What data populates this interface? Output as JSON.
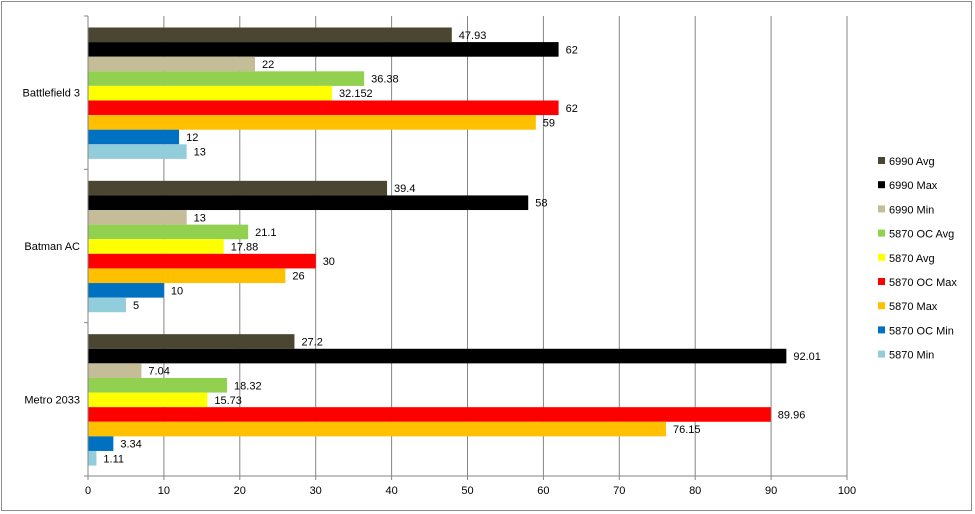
{
  "chart_data": {
    "type": "bar",
    "orientation": "horizontal",
    "categories": [
      "Battlefield 3",
      "Batman AC",
      "Metro 2033"
    ],
    "series": [
      {
        "name": "6990 Avg",
        "color": "#4a4631",
        "values": [
          47.93,
          39.4,
          27.2
        ]
      },
      {
        "name": "6990 Max",
        "color": "#000000",
        "values": [
          62,
          58,
          92.01
        ]
      },
      {
        "name": "6990 Min",
        "color": "#c4bd97",
        "values": [
          22,
          13,
          7.04
        ]
      },
      {
        "name": "5870 OC Avg",
        "color": "#92d050",
        "values": [
          36.38,
          21.1,
          18.32
        ]
      },
      {
        "name": "5870 Avg",
        "color": "#ffff00",
        "values": [
          32.152,
          17.88,
          15.73
        ]
      },
      {
        "name": "5870 OC Max",
        "color": "#ff0000",
        "values": [
          62,
          30,
          89.96
        ]
      },
      {
        "name": "5870 Max",
        "color": "#ffc000",
        "values": [
          59,
          26,
          76.15
        ]
      },
      {
        "name": "5870 OC Min",
        "color": "#0070c0",
        "values": [
          12,
          10,
          3.34
        ]
      },
      {
        "name": "5870 Min",
        "color": "#92cddc",
        "values": [
          13,
          5,
          1.11
        ]
      }
    ],
    "value_labels": [
      [
        "47.93",
        "39.4",
        "27.2"
      ],
      [
        "62",
        "58",
        "92.01"
      ],
      [
        "22",
        "13",
        "7.04"
      ],
      [
        "36.38",
        "21.1",
        "18.32"
      ],
      [
        "32.152",
        "17.88",
        "15.73"
      ],
      [
        "62",
        "30",
        "89.96"
      ],
      [
        "59",
        "26",
        "76.15"
      ],
      [
        "12",
        "10",
        "3.34"
      ],
      [
        "13",
        "5",
        "1.11"
      ]
    ],
    "xlim": [
      0,
      100
    ],
    "xticks": [
      "0",
      "10",
      "20",
      "30",
      "40",
      "50",
      "60",
      "70",
      "80",
      "90",
      "100"
    ],
    "grid": "vertical",
    "legend": "right",
    "title": "",
    "xlabel": "",
    "ylabel": ""
  }
}
